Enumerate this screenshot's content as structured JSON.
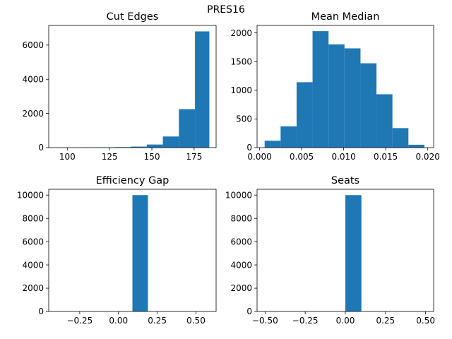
{
  "figure": {
    "title": "PRES16"
  },
  "chart_data": [
    {
      "type": "bar",
      "title": "Cut Edges",
      "xlim": [
        89,
        188
      ],
      "ylim": [
        0,
        7150
      ],
      "xticks": [
        100,
        125,
        150,
        175
      ],
      "xtick_labels": [
        "100",
        "125",
        "150",
        "175"
      ],
      "yticks": [
        0,
        2000,
        4000,
        6000
      ],
      "ytick_labels": [
        "0",
        "2000",
        "4000",
        "6000"
      ],
      "bins": [
        {
          "x0": 109,
          "x1": 118.5,
          "value": 10
        },
        {
          "x0": 118.5,
          "x1": 128,
          "value": 20
        },
        {
          "x0": 128,
          "x1": 137.5,
          "value": 30
        },
        {
          "x0": 137.5,
          "x1": 147,
          "value": 60
        },
        {
          "x0": 147,
          "x1": 156.5,
          "value": 180
        },
        {
          "x0": 156.5,
          "x1": 166,
          "value": 650
        },
        {
          "x0": 166,
          "x1": 175.5,
          "value": 2250
        },
        {
          "x0": 175.5,
          "x1": 184,
          "value": 6800
        }
      ]
    },
    {
      "type": "bar",
      "title": "Mean Median",
      "xlim": [
        -0.0003,
        0.0207
      ],
      "ylim": [
        0,
        2130
      ],
      "xticks": [
        0.0,
        0.005,
        0.01,
        0.015,
        0.02
      ],
      "xtick_labels": [
        "0.000",
        "0.005",
        "0.010",
        "0.015",
        "0.020"
      ],
      "yticks": [
        0,
        500,
        1000,
        1500,
        2000
      ],
      "ytick_labels": [
        "0",
        "500",
        "1000",
        "1500",
        "2000"
      ],
      "bins": [
        {
          "x0": 0.0006,
          "x1": 0.0025,
          "value": 120
        },
        {
          "x0": 0.0025,
          "x1": 0.0044,
          "value": 370
        },
        {
          "x0": 0.0044,
          "x1": 0.0063,
          "value": 1140
        },
        {
          "x0": 0.0063,
          "x1": 0.0082,
          "value": 2030
        },
        {
          "x0": 0.0082,
          "x1": 0.0101,
          "value": 1800
        },
        {
          "x0": 0.0101,
          "x1": 0.012,
          "value": 1730
        },
        {
          "x0": 0.012,
          "x1": 0.0139,
          "value": 1470
        },
        {
          "x0": 0.0139,
          "x1": 0.0158,
          "value": 930
        },
        {
          "x0": 0.0158,
          "x1": 0.0177,
          "value": 340
        },
        {
          "x0": 0.0177,
          "x1": 0.0196,
          "value": 50
        }
      ]
    },
    {
      "type": "bar",
      "title": "Efficiency Gap",
      "xlim": [
        -0.45,
        0.63
      ],
      "ylim": [
        0,
        10500
      ],
      "xticks": [
        -0.25,
        0.0,
        0.25,
        0.5
      ],
      "xtick_labels": [
        "−0.25",
        "0.00",
        "0.25",
        "0.50"
      ],
      "yticks": [
        0,
        2000,
        4000,
        6000,
        8000,
        10000
      ],
      "ytick_labels": [
        "0",
        "2000",
        "4000",
        "6000",
        "8000",
        "10000"
      ],
      "bins": [
        {
          "x0": 0.09,
          "x1": 0.19,
          "value": 10000
        }
      ]
    },
    {
      "type": "bar",
      "title": "Seats",
      "xlim": [
        -0.55,
        0.55
      ],
      "ylim": [
        0,
        10500
      ],
      "xticks": [
        -0.5,
        -0.25,
        0.0,
        0.25,
        0.5
      ],
      "xtick_labels": [
        "−0.50",
        "−0.25",
        "0.00",
        "0.25",
        "0.50"
      ],
      "yticks": [
        0,
        2000,
        4000,
        6000,
        8000,
        10000
      ],
      "ytick_labels": [
        "0",
        "2000",
        "4000",
        "6000",
        "8000",
        "10000"
      ],
      "bins": [
        {
          "x0": 0.0,
          "x1": 0.1,
          "value": 10000
        }
      ]
    }
  ],
  "colors": {
    "bar": "#1f77b4",
    "axis": "#000000",
    "background": "#ffffff"
  }
}
